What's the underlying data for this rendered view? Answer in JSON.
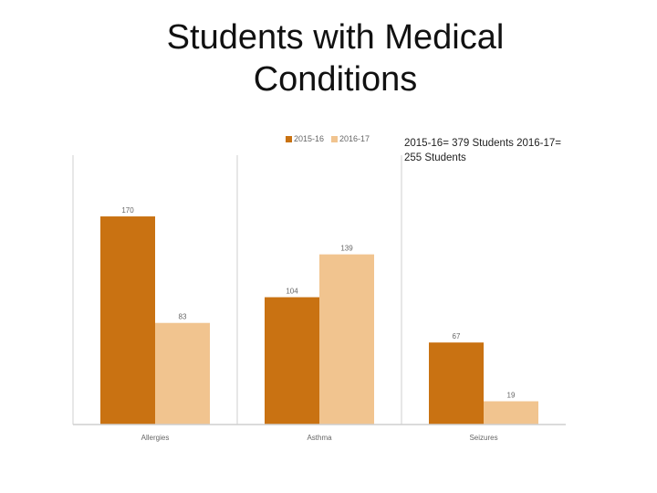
{
  "slide": {
    "title": "Students with Medical\nConditions",
    "annotation": "2015-16= 379 Students   2016-17= 255 Students"
  },
  "colors": {
    "series_2015_16": "#C97212",
    "series_2016_17": "#F1C48F",
    "axis": "#CFCFCF",
    "label_text": "#666666",
    "title_text": "#111111"
  },
  "chart_data": {
    "type": "bar",
    "categories": [
      "Allergies",
      "Asthma",
      "Seizures"
    ],
    "series": [
      {
        "name": "2015-16",
        "values": [
          170,
          104,
          67
        ]
      },
      {
        "name": "2016-17",
        "values": [
          83,
          139,
          19
        ]
      }
    ],
    "ylim": [
      0,
      220
    ],
    "legend": "top-center",
    "grid": false
  }
}
